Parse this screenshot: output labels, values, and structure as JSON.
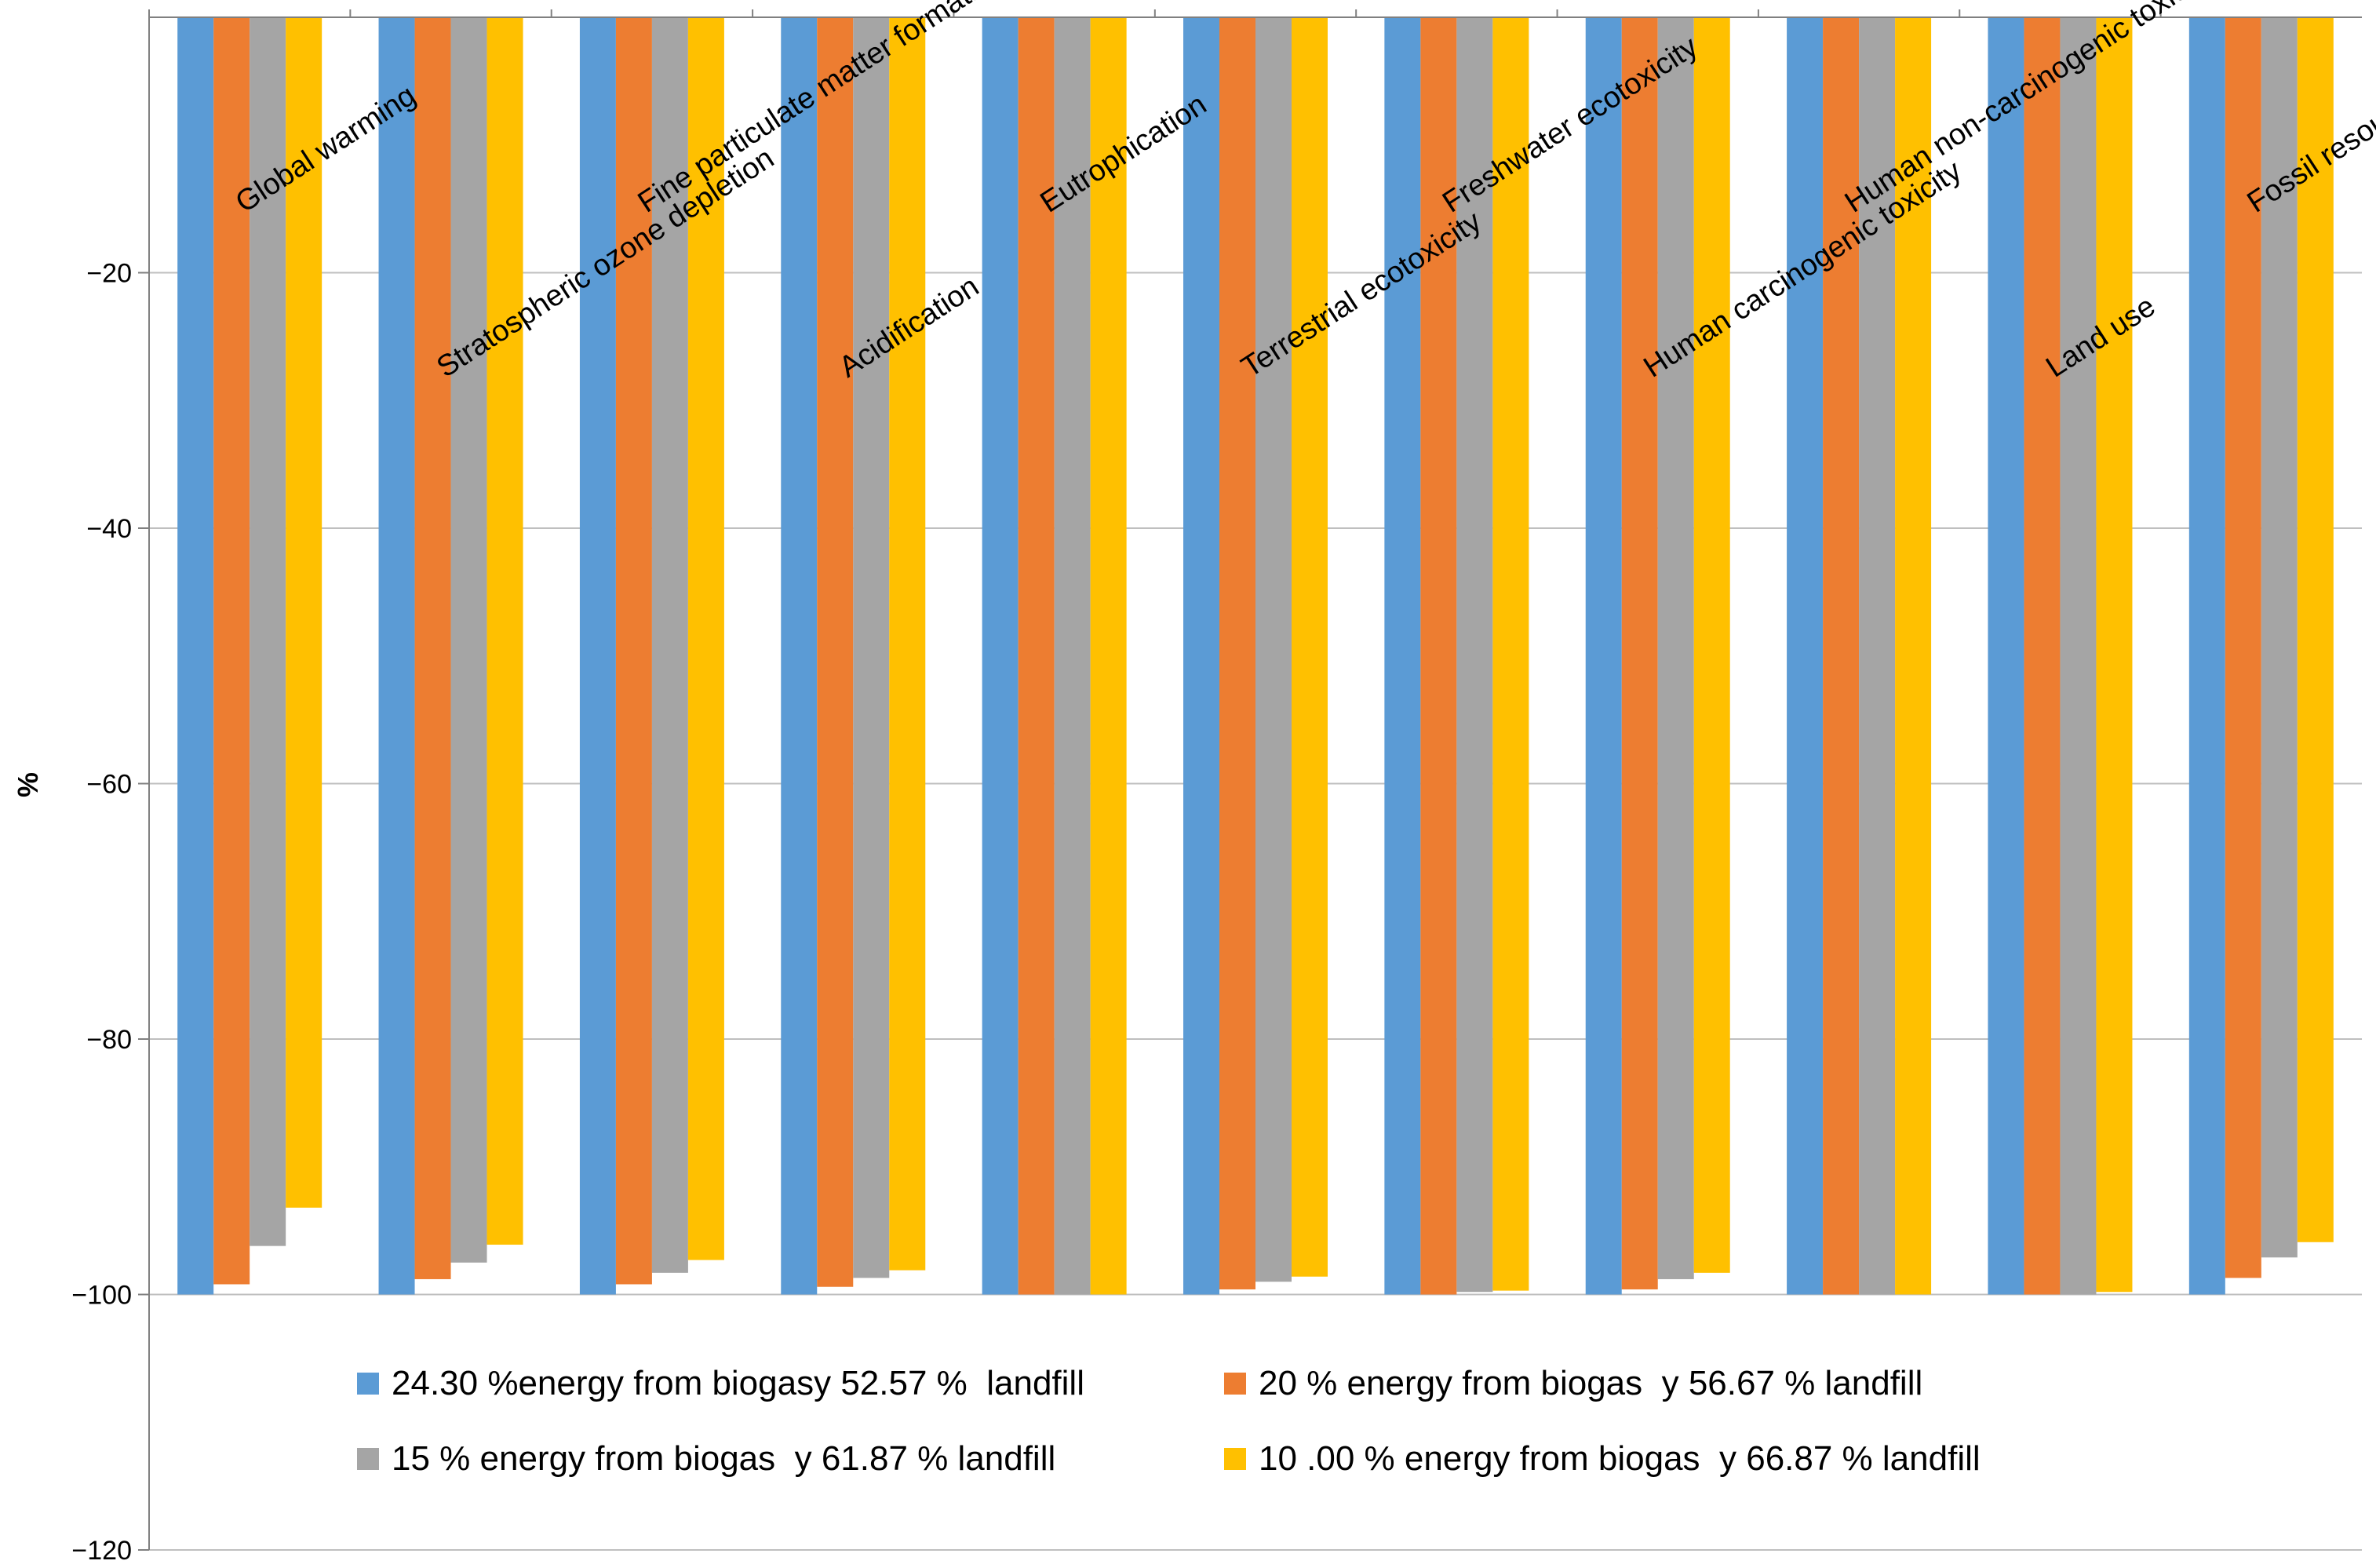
{
  "chart_data": {
    "type": "bar",
    "title": "",
    "xlabel": "",
    "ylabel": "%",
    "ylim": [
      -120,
      0
    ],
    "yticks": [
      -20,
      -40,
      -60,
      -80,
      -100,
      -120
    ],
    "grid": true,
    "legend_position": "bottom",
    "categories": [
      "Global warming",
      "Stratospheric ozone depletion",
      "Fine particulate matter formation",
      "Acidification",
      "Eutrophication",
      "Terrestrial ecotoxicity",
      "Freshwater ecotoxicity",
      "Human carcinogenic toxicity",
      "Human non-carcinogenic toxicity",
      "Land use",
      "Fossil resource scarcity"
    ],
    "series": [
      {
        "name": "24.30 %energy from biogasy 52.57 %  landfill",
        "color": "#5B9BD5",
        "values": [
          -100,
          -100,
          -100,
          -100,
          -100,
          -100,
          -100,
          -100,
          -100,
          -100,
          -100
        ]
      },
      {
        "name": "20 % energy from biogas  y 56.67 % landfill",
        "color": "#ED7D31",
        "values": [
          -99.2,
          -98.8,
          -99.2,
          -99.4,
          -100,
          -99.6,
          -100,
          -99.6,
          -100,
          -100,
          -98.7
        ]
      },
      {
        "name": "15 % energy from biogas  y 61.87 % landfill",
        "color": "#A5A5A5",
        "values": [
          -96.2,
          -97.5,
          -98.3,
          -98.7,
          -100,
          -99.0,
          -99.8,
          -98.8,
          -100,
          -100,
          -97.1
        ]
      },
      {
        "name": "10 .00 % energy from biogas  y 66.87 % landfill",
        "color": "#FFC000",
        "values": [
          -93.2,
          -96.1,
          -97.3,
          -98.1,
          -100,
          -98.6,
          -99.7,
          -98.3,
          -100,
          -99.8,
          -95.9
        ]
      }
    ]
  }
}
